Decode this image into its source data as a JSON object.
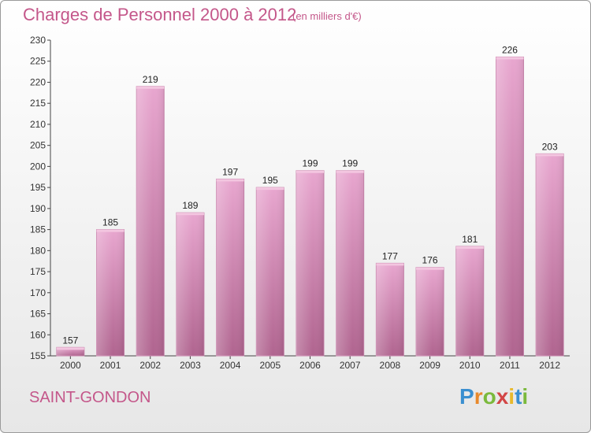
{
  "chart_data": {
    "type": "bar",
    "title": "Charges de Personnel 2000 à 2012",
    "unit_note": "(en milliers d'€)",
    "categories": [
      "2000",
      "2001",
      "2002",
      "2003",
      "2004",
      "2005",
      "2006",
      "2007",
      "2008",
      "2009",
      "2010",
      "2011",
      "2012"
    ],
    "values": [
      157,
      185,
      219,
      189,
      197,
      195,
      199,
      199,
      177,
      176,
      181,
      226,
      203
    ],
    "ylim": [
      155,
      230
    ],
    "yticks": [
      155,
      160,
      165,
      170,
      175,
      180,
      185,
      190,
      195,
      200,
      205,
      210,
      215,
      220,
      225,
      230
    ],
    "grid": false,
    "bar_color": "#dc8fbc",
    "legend": "none"
  },
  "commune": "SAINT-GONDON",
  "logo": {
    "letters": [
      "P",
      "r",
      "o",
      "x",
      "i",
      "t",
      "i"
    ],
    "colors": [
      "#3a8fd0",
      "#e8892c",
      "#7bb93c",
      "#d24646",
      "#e8b92c",
      "#3a8fd0",
      "#7bb93c"
    ]
  }
}
